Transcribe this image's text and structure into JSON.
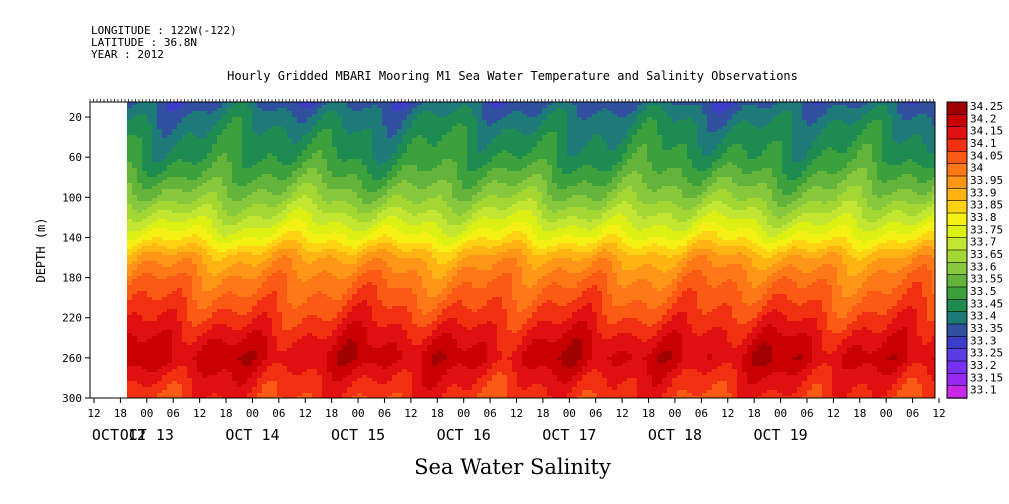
{
  "meta": {
    "longitude": "LONGITUDE : 122W(-122)",
    "latitude": "LATITUDE : 36.8N",
    "year": "YEAR : 2012"
  },
  "chart_data": {
    "type": "heatmap",
    "title": "Hourly Gridded MBARI Mooring M1 Sea Water Temperature and Salinity Observations",
    "xlabel": "Sea Water Salinity",
    "ylabel": "DEPTH (m)",
    "x_hour_ticks": [
      "12",
      "18",
      "00",
      "06",
      "12",
      "18",
      "00",
      "06",
      "12",
      "18",
      "00",
      "06",
      "12",
      "18",
      "00",
      "06",
      "12",
      "18",
      "00",
      "06",
      "12",
      "18",
      "00",
      "06",
      "12",
      "18",
      "00",
      "06",
      "12",
      "18",
      "00",
      "06",
      "12"
    ],
    "x_day_labels": [
      "OCT 12",
      "OCT 13",
      "OCT 14",
      "OCT 15",
      "OCT 16",
      "OCT 17",
      "OCT 18",
      "OCT 19"
    ],
    "y_ticks": [
      20,
      60,
      100,
      140,
      180,
      220,
      260,
      300
    ],
    "ylim": [
      300,
      5
    ],
    "y_reversed": true,
    "data_start": "OCT 12 19:30",
    "colorbar_levels": [
      34.25,
      34.2,
      34.15,
      34.1,
      34.05,
      34,
      33.95,
      33.9,
      33.85,
      33.8,
      33.75,
      33.7,
      33.65,
      33.6,
      33.55,
      33.5,
      33.45,
      33.4,
      33.35,
      33.3,
      33.25,
      33.2,
      33.15,
      33.1
    ],
    "colorbar_colors": [
      "#a00000",
      "#c80000",
      "#e01010",
      "#f03010",
      "#fa5a14",
      "#ff7818",
      "#ff9618",
      "#ffb414",
      "#ffd214",
      "#f5f014",
      "#dcf014",
      "#c3e632",
      "#a5d732",
      "#87c83c",
      "#64b43c",
      "#3ca03c",
      "#1e8c50",
      "#1e7a78",
      "#3250a0",
      "#3c3cc8",
      "#5a3ce6",
      "#7830f5",
      "#9628f0",
      "#c828e6"
    ],
    "profile": [
      {
        "depth": 5,
        "salinity": 33.38
      },
      {
        "depth": 20,
        "salinity": 33.43
      },
      {
        "depth": 40,
        "salinity": 33.47
      },
      {
        "depth": 60,
        "salinity": 33.5
      },
      {
        "depth": 80,
        "salinity": 33.56
      },
      {
        "depth": 100,
        "salinity": 33.63
      },
      {
        "depth": 120,
        "salinity": 33.72
      },
      {
        "depth": 140,
        "salinity": 33.82
      },
      {
        "depth": 160,
        "salinity": 33.95
      },
      {
        "depth": 180,
        "salinity": 34.02
      },
      {
        "depth": 200,
        "salinity": 34.07
      },
      {
        "depth": 220,
        "salinity": 34.12
      },
      {
        "depth": 240,
        "salinity": 34.18
      },
      {
        "depth": 260,
        "salinity": 34.22
      },
      {
        "depth": 280,
        "salinity": 34.16
      },
      {
        "depth": 300,
        "salinity": 34.12
      }
    ]
  }
}
